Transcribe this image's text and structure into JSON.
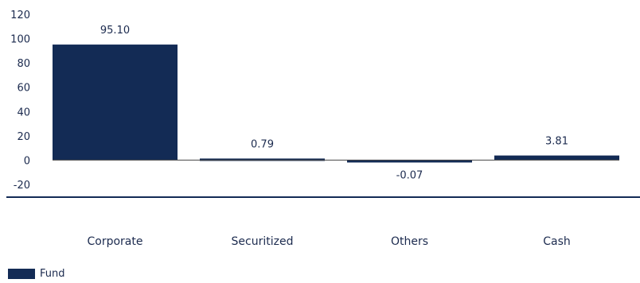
{
  "chart_data": {
    "type": "bar",
    "categories": [
      "Corporate",
      "Securitized",
      "Others",
      "Cash"
    ],
    "series": [
      {
        "name": "Fund",
        "values": [
          95.1,
          0.79,
          -0.07,
          3.81
        ]
      }
    ],
    "data_labels": [
      "95.10",
      "0.79",
      "-0.07",
      "3.81"
    ],
    "y_ticks": [
      "120",
      "100",
      "80",
      "60",
      "40",
      "20",
      "0",
      "-20"
    ],
    "ylim": [
      -20,
      120
    ],
    "grid": false,
    "legend_position": "bottom-left"
  },
  "colors": {
    "bar": "#132b55",
    "axis_line": "#132b55",
    "text": "#1b2a4e"
  }
}
